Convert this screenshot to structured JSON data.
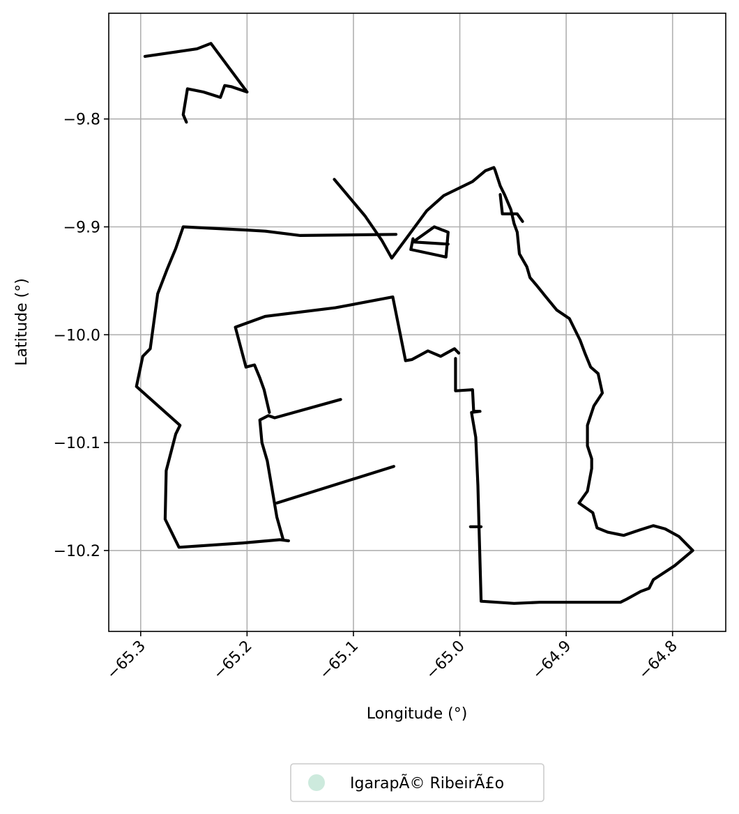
{
  "chart_data": {
    "type": "map",
    "xlabel": "Longitude (°)",
    "ylabel": "Latitude (°)",
    "xlim": [
      -65.33,
      -64.75
    ],
    "ylim": [
      -10.275,
      -9.702
    ],
    "xticks": [
      -65.3,
      -65.2,
      -65.1,
      -65.0,
      -64.9,
      -64.8
    ],
    "yticks": [
      -9.8,
      -9.9,
      -10.0,
      -10.1,
      -10.2
    ],
    "xtick_labels": [
      "−65.3",
      "−65.2",
      "−65.1",
      "−65.0",
      "−64.9",
      "−64.8"
    ],
    "ytick_labels": [
      "−9.8",
      "−9.9",
      "−10.0",
      "−10.1",
      "−10.2"
    ],
    "grid": true,
    "legend": {
      "placement": "bottom-center",
      "entries": [
        {
          "label": "IgarapÃ© RibeirÃ£o",
          "color": "#cdeadd"
        }
      ]
    },
    "boundary_color": "#000000",
    "features": [
      {
        "name": "northwest-outline",
        "lonlat": [
          [
            -65.296,
            -9.742
          ],
          [
            -65.247,
            -9.735
          ],
          [
            -65.234,
            -9.73
          ],
          [
            -65.2,
            -9.775
          ],
          [
            -65.215,
            -9.77
          ],
          [
            -65.221,
            -9.769
          ],
          [
            -65.225,
            -9.78
          ],
          [
            -65.241,
            -9.775
          ],
          [
            -65.256,
            -9.772
          ],
          [
            -65.26,
            -9.796
          ],
          [
            -65.257,
            -9.803
          ]
        ]
      },
      {
        "name": "western-outline",
        "lonlat": [
          [
            -65.06,
            -9.907
          ],
          [
            -65.15,
            -9.908
          ],
          [
            -65.183,
            -9.904
          ],
          [
            -65.2,
            -9.903
          ],
          [
            -65.26,
            -9.9
          ],
          [
            -65.267,
            -9.92
          ],
          [
            -65.275,
            -9.939
          ],
          [
            -65.284,
            -9.962
          ],
          [
            -65.291,
            -10.013
          ],
          [
            -65.298,
            -10.02
          ],
          [
            -65.304,
            -10.048
          ],
          [
            -65.263,
            -10.084
          ],
          [
            -65.267,
            -10.092
          ],
          [
            -65.276,
            -10.126
          ],
          [
            -65.277,
            -10.171
          ],
          [
            -65.264,
            -10.197
          ],
          [
            -65.204,
            -10.193
          ],
          [
            -65.169,
            -10.19
          ],
          [
            -65.161,
            -10.191
          ]
        ]
      },
      {
        "name": "inner-outline",
        "lonlat": [
          [
            -65.166,
            -10.19
          ],
          [
            -65.172,
            -10.169
          ],
          [
            -65.181,
            -10.117
          ],
          [
            -65.186,
            -10.1
          ],
          [
            -65.188,
            -10.079
          ],
          [
            -65.18,
            -10.075
          ],
          [
            -65.174,
            -10.077
          ],
          [
            -65.112,
            -10.06
          ]
        ]
      },
      {
        "name": "inner-west-edge",
        "lonlat": [
          [
            -65.172,
            -10.156
          ],
          [
            -65.062,
            -10.122
          ]
        ]
      },
      {
        "name": "inner-north-edge",
        "lonlat": [
          [
            -65.179,
            -10.072
          ],
          [
            -65.184,
            -10.051
          ],
          [
            -65.188,
            -10.04
          ],
          [
            -65.193,
            -10.028
          ],
          [
            -65.201,
            -10.03
          ],
          [
            -65.211,
            -9.993
          ],
          [
            -65.183,
            -9.983
          ],
          [
            -65.117,
            -9.975
          ],
          [
            -65.063,
            -9.965
          ],
          [
            -65.051,
            -10.024
          ],
          [
            -65.045,
            -10.023
          ],
          [
            -65.03,
            -10.015
          ],
          [
            -65.018,
            -10.02
          ],
          [
            -65.005,
            -10.013
          ],
          [
            -65.001,
            -10.017
          ]
        ]
      },
      {
        "name": "eastern-outline",
        "lonlat": [
          [
            -65.004,
            -10.022
          ],
          [
            -65.004,
            -10.052
          ],
          [
            -64.988,
            -10.051
          ],
          [
            -64.987,
            -10.071
          ],
          [
            -64.981,
            -10.071
          ],
          [
            -64.989,
            -10.072
          ],
          [
            -64.985,
            -10.095
          ],
          [
            -64.983,
            -10.14
          ],
          [
            -64.982,
            -10.176
          ],
          [
            -64.98,
            -10.247
          ],
          [
            -64.949,
            -10.249
          ],
          [
            -64.925,
            -10.248
          ],
          [
            -64.849,
            -10.248
          ],
          [
            -64.843,
            -10.245
          ],
          [
            -64.83,
            -10.238
          ],
          [
            -64.822,
            -10.235
          ],
          [
            -64.818,
            -10.227
          ],
          [
            -64.798,
            -10.214
          ],
          [
            -64.781,
            -10.2
          ],
          [
            -64.794,
            -10.187
          ],
          [
            -64.807,
            -10.18
          ],
          [
            -64.818,
            -10.177
          ],
          [
            -64.831,
            -10.181
          ],
          [
            -64.846,
            -10.186
          ],
          [
            -64.861,
            -10.183
          ],
          [
            -64.871,
            -10.179
          ],
          [
            -64.873,
            -10.172
          ],
          [
            -64.875,
            -10.165
          ],
          [
            -64.888,
            -10.156
          ],
          [
            -64.88,
            -10.145
          ],
          [
            -64.876,
            -10.124
          ],
          [
            -64.876,
            -10.115
          ],
          [
            -64.88,
            -10.103
          ],
          [
            -64.88,
            -10.084
          ],
          [
            -64.874,
            -10.066
          ],
          [
            -64.866,
            -10.054
          ],
          [
            -64.87,
            -10.036
          ],
          [
            -64.877,
            -10.03
          ],
          [
            -64.882,
            -10.018
          ],
          [
            -64.887,
            -10.005
          ],
          [
            -64.897,
            -9.985
          ],
          [
            -64.909,
            -9.977
          ],
          [
            -64.919,
            -9.965
          ],
          [
            -64.928,
            -9.954
          ],
          [
            -64.934,
            -9.947
          ],
          [
            -64.937,
            -9.937
          ],
          [
            -64.944,
            -9.925
          ],
          [
            -64.946,
            -9.905
          ],
          [
            -64.949,
            -9.897
          ],
          [
            -64.952,
            -9.884
          ],
          [
            -64.958,
            -9.87
          ],
          [
            -64.962,
            -9.862
          ],
          [
            -64.967,
            -9.847
          ],
          [
            -64.968,
            -9.845
          ],
          [
            -64.976,
            -9.848
          ],
          [
            -64.988,
            -9.858
          ],
          [
            -65.015,
            -9.871
          ],
          [
            -65.031,
            -9.885
          ],
          [
            -65.064,
            -9.929
          ],
          [
            -65.073,
            -9.913
          ],
          [
            -65.089,
            -9.89
          ],
          [
            -65.118,
            -9.856
          ]
        ]
      },
      {
        "name": "eastern-inlet",
        "lonlat": [
          [
            -64.962,
            -9.87
          ],
          [
            -64.96,
            -9.888
          ],
          [
            -64.946,
            -9.888
          ],
          [
            -64.941,
            -9.895
          ]
        ]
      },
      {
        "name": "east-inner-block",
        "lonlat": [
          [
            -65.044,
            -9.911
          ],
          [
            -65.046,
            -9.921
          ],
          [
            -65.013,
            -9.928
          ],
          [
            -65.011,
            -9.905
          ],
          [
            -65.024,
            -9.9
          ],
          [
            -65.044,
            -9.914
          ],
          [
            -65.011,
            -9.916
          ]
        ]
      },
      {
        "name": "east-inner-stub",
        "lonlat": [
          [
            -64.99,
            -10.178
          ],
          [
            -64.98,
            -10.178
          ]
        ]
      }
    ]
  }
}
